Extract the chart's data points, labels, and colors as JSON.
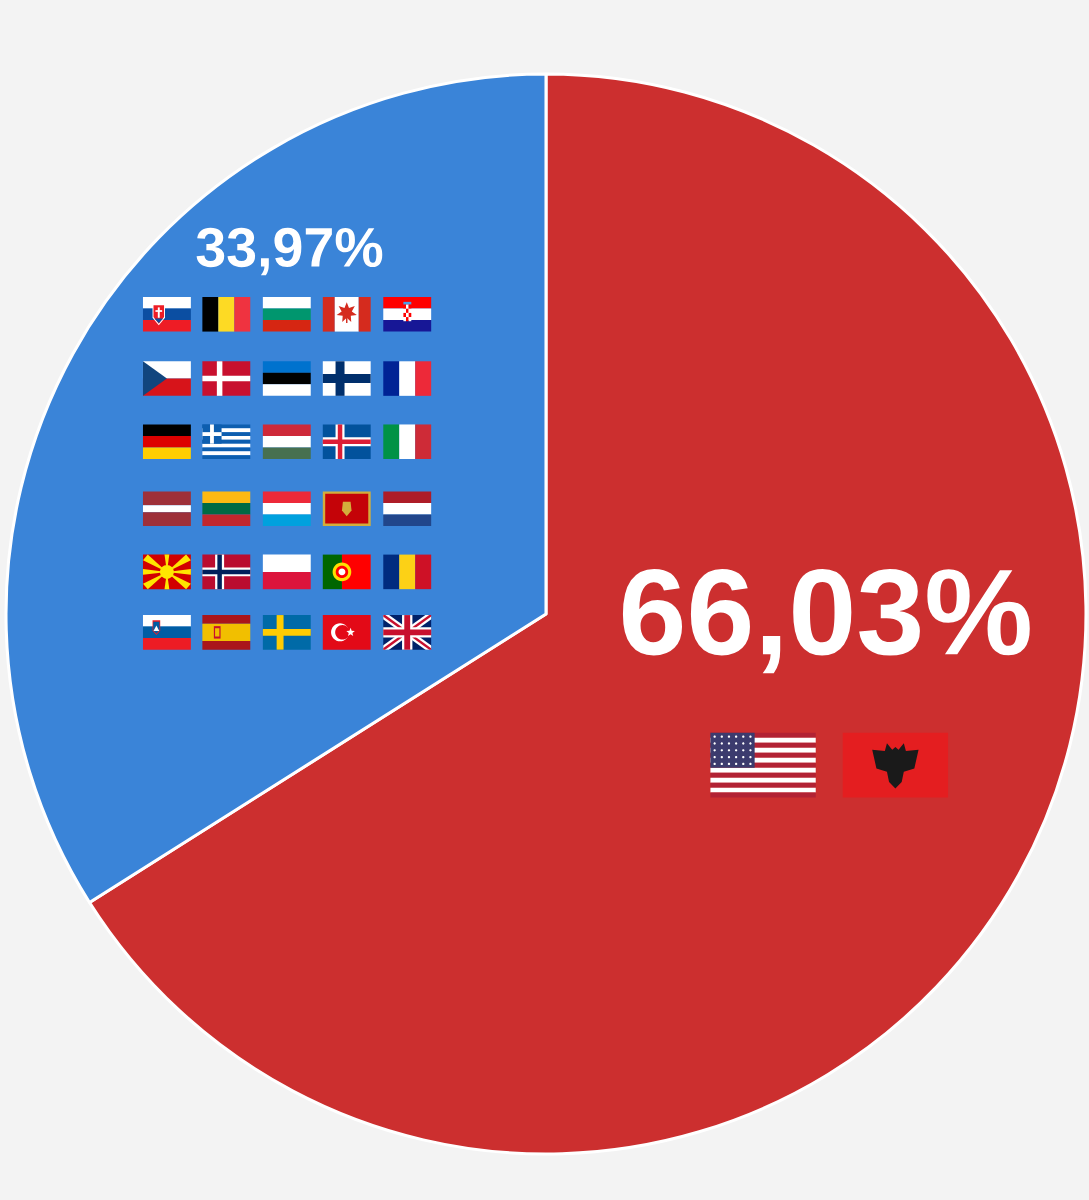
{
  "chart_data": {
    "type": "pie",
    "categories": [
      null,
      null
    ],
    "values": [
      66.03,
      33.97
    ],
    "colors": [
      "#cc2f2f",
      "#3a84d8"
    ],
    "value_labels": [
      "66,03%",
      "33,97%"
    ]
  }
}
